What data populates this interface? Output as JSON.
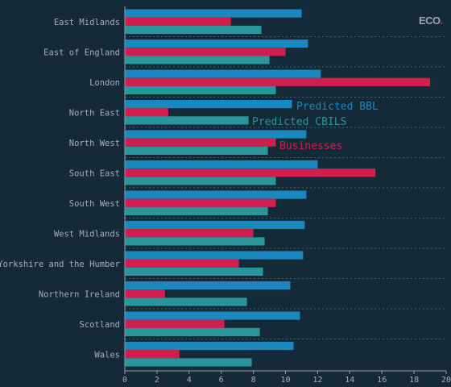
{
  "logo": {
    "text": "ECO",
    "mark": "."
  },
  "chart_data": {
    "type": "bar",
    "orientation": "horizontal",
    "categories": [
      "East Midlands",
      "East of England",
      "London",
      "North East",
      "North West",
      "South East",
      "South West",
      "West Midlands",
      "Yorkshire and the Humber",
      "Northern Ireland",
      "Scotland",
      "Wales"
    ],
    "series": [
      {
        "name": "Predicted BBL",
        "color": "#1b87bf",
        "values": [
          11.0,
          11.4,
          12.2,
          10.4,
          11.3,
          12.0,
          11.3,
          11.2,
          11.1,
          10.3,
          10.9,
          10.5
        ]
      },
      {
        "name": "Businesses",
        "color": "#d11e4e",
        "values": [
          6.6,
          10.0,
          19.0,
          2.7,
          9.4,
          15.6,
          9.4,
          8.0,
          7.1,
          2.5,
          6.2,
          3.4
        ]
      },
      {
        "name": "Predicted CBILS",
        "color": "#28969a",
        "values": [
          8.5,
          9.0,
          9.4,
          7.7,
          8.9,
          9.4,
          8.9,
          8.7,
          8.6,
          7.6,
          8.4,
          7.9
        ]
      }
    ],
    "xlim": [
      0,
      20
    ],
    "xticks": [
      "0",
      "2",
      "4",
      "6",
      "8",
      "10",
      "12",
      "14",
      "16",
      "18",
      "20"
    ],
    "grid": "dotted separators between categories",
    "legend": "inline labels near North East / North West"
  }
}
